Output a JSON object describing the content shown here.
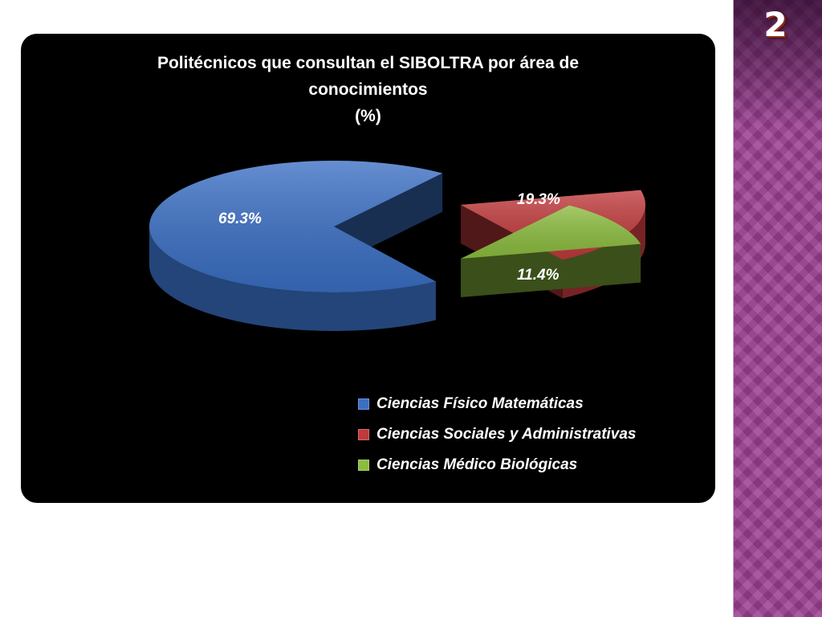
{
  "slide": {
    "number": "2"
  },
  "chart_data": {
    "type": "pie",
    "title_lines": [
      "Politécnicos que consultan el SIBOLTRA por área de",
      "conocimientos",
      "(%)"
    ],
    "categories": [
      "Ciencias Físico Matemáticas",
      "Ciencias Sociales  y Administrativas",
      "Ciencias Médico Biológicas"
    ],
    "values": [
      69.3,
      19.3,
      11.4
    ],
    "data_labels": [
      "69.3%",
      "19.3%",
      "11.4%"
    ],
    "colors": [
      "#3a6fc4",
      "#c0393b",
      "#8cbd3f"
    ],
    "exploded": true,
    "three_d": true,
    "legend_position": "bottom-right"
  }
}
